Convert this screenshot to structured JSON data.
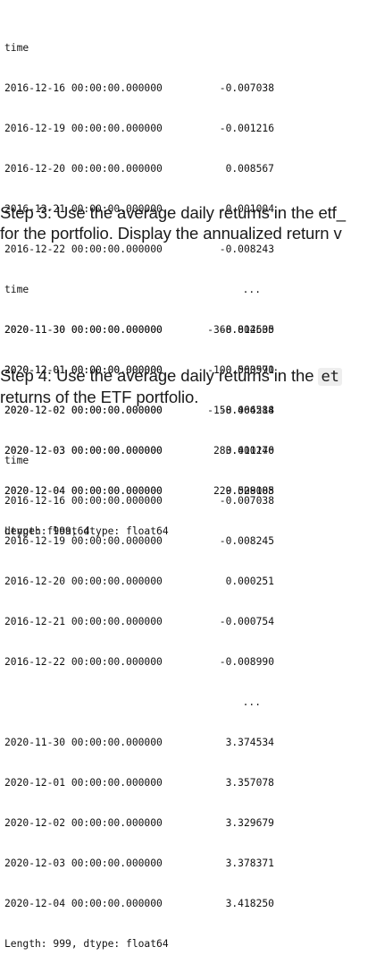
{
  "block1": {
    "index_name": "time",
    "rows": [
      {
        "index": "2016-12-16 00:00:00.000000",
        "value": "-0.007038"
      },
      {
        "index": "2016-12-19 00:00:00.000000",
        "value": "-0.001216"
      },
      {
        "index": "2016-12-20 00:00:00.000000",
        "value": "0.008567"
      },
      {
        "index": "2016-12-21 00:00:00.000000",
        "value": "-0.001004"
      },
      {
        "index": "2016-12-22 00:00:00.000000",
        "value": "-0.008243"
      }
    ],
    "ellipsis": "...",
    "rows_tail": [
      {
        "index": "2020-11-30 00:00:00.000000",
        "value": "-0.014635"
      },
      {
        "index": "2020-12-01 00:00:00.000000",
        "value": "-0.003990"
      },
      {
        "index": "2020-12-02 00:00:00.000000",
        "value": "-0.006288"
      },
      {
        "index": "2020-12-03 00:00:00.000000",
        "value": "0.011246"
      },
      {
        "index": "2020-12-04 00:00:00.000000",
        "value": "0.009108"
      }
    ],
    "footer": "Length: 999, dtype: float64"
  },
  "step3": {
    "line1": "Step 3: Use the average daily returns in the etf_",
    "line2": "for the portfolio. Display the annualized return v"
  },
  "block2": {
    "index_name": "time",
    "rows": [
      {
        "index": "2020-11-30 00:00:00.000000",
        "value": "-368.802500"
      },
      {
        "index": "2020-12-01 00:00:00.000000",
        "value": "-100.560571"
      },
      {
        "index": "2020-12-02 00:00:00.000000",
        "value": "-158.464514"
      },
      {
        "index": "2020-12-03 00:00:00.000000",
        "value": "283.400170"
      },
      {
        "index": "2020-12-04 00:00:00.000000",
        "value": "229.528085"
      }
    ],
    "footer": "dtype: float64"
  },
  "step4": {
    "line1_text": "Step 4: Use the average daily returns in the",
    "line1_code": "et",
    "line2": "returns of the ETF portfolio."
  },
  "block3": {
    "index_name": "time",
    "rows": [
      {
        "index": "2016-12-16 00:00:00.000000",
        "value": "-0.007038"
      },
      {
        "index": "2016-12-19 00:00:00.000000",
        "value": "-0.008245"
      },
      {
        "index": "2016-12-20 00:00:00.000000",
        "value": "0.000251"
      },
      {
        "index": "2016-12-21 00:00:00.000000",
        "value": "-0.000754"
      },
      {
        "index": "2016-12-22 00:00:00.000000",
        "value": "-0.008990"
      }
    ],
    "ellipsis": "...",
    "rows_tail": [
      {
        "index": "2020-11-30 00:00:00.000000",
        "value": "3.374534"
      },
      {
        "index": "2020-12-01 00:00:00.000000",
        "value": "3.357078"
      },
      {
        "index": "2020-12-02 00:00:00.000000",
        "value": "3.329679"
      },
      {
        "index": "2020-12-03 00:00:00.000000",
        "value": "3.378371"
      },
      {
        "index": "2020-12-04 00:00:00.000000",
        "value": "3.418250"
      }
    ],
    "footer": "Length: 999, dtype: float64"
  }
}
